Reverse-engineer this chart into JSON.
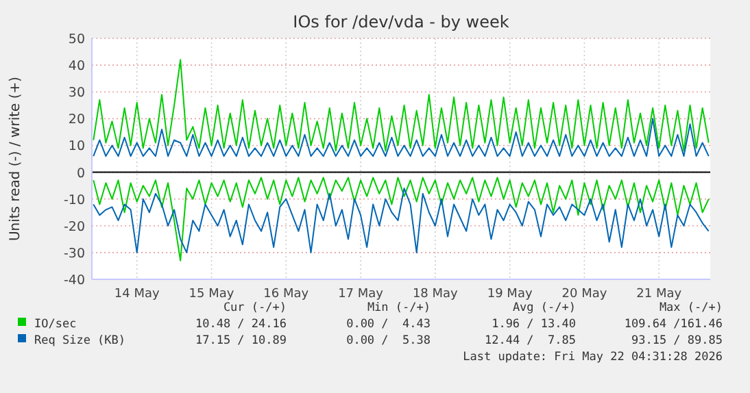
{
  "chart_data": {
    "type": "line",
    "title": "IOs for /dev/vda - by week",
    "ylabel": "Units read (-) / write (+)",
    "x": [
      "2026-05-13T22:00",
      "2026-05-14T00:00",
      "2026-05-14T02:00",
      "2026-05-14T04:00",
      "2026-05-14T06:00",
      "2026-05-14T08:00",
      "2026-05-14T10:00",
      "2026-05-14T12:00",
      "2026-05-14T14:00",
      "2026-05-14T16:00",
      "2026-05-14T18:00",
      "2026-05-14T20:00",
      "2026-05-14T22:00",
      "2026-05-15T00:00",
      "2026-05-15T02:00",
      "2026-05-15T04:00",
      "2026-05-15T06:00",
      "2026-05-15T08:00",
      "2026-05-15T10:00",
      "2026-05-15T12:00",
      "2026-05-15T14:00",
      "2026-05-15T16:00",
      "2026-05-15T18:00",
      "2026-05-15T20:00",
      "2026-05-15T22:00",
      "2026-05-16T00:00",
      "2026-05-16T02:00",
      "2026-05-16T04:00",
      "2026-05-16T06:00",
      "2026-05-16T08:00",
      "2026-05-16T10:00",
      "2026-05-16T12:00",
      "2026-05-16T14:00",
      "2026-05-16T16:00",
      "2026-05-16T18:00",
      "2026-05-16T20:00",
      "2026-05-16T22:00",
      "2026-05-17T00:00",
      "2026-05-17T02:00",
      "2026-05-17T04:00",
      "2026-05-17T06:00",
      "2026-05-17T08:00",
      "2026-05-17T10:00",
      "2026-05-17T12:00",
      "2026-05-17T14:00",
      "2026-05-17T16:00",
      "2026-05-17T18:00",
      "2026-05-17T20:00",
      "2026-05-17T22:00",
      "2026-05-18T00:00",
      "2026-05-18T02:00",
      "2026-05-18T04:00",
      "2026-05-18T06:00",
      "2026-05-18T08:00",
      "2026-05-18T10:00",
      "2026-05-18T12:00",
      "2026-05-18T14:00",
      "2026-05-18T16:00",
      "2026-05-18T18:00",
      "2026-05-18T20:00",
      "2026-05-18T22:00",
      "2026-05-19T00:00",
      "2026-05-19T02:00",
      "2026-05-19T04:00",
      "2026-05-19T06:00",
      "2026-05-19T08:00",
      "2026-05-19T10:00",
      "2026-05-19T12:00",
      "2026-05-19T14:00",
      "2026-05-19T16:00",
      "2026-05-19T18:00",
      "2026-05-19T20:00",
      "2026-05-19T22:00",
      "2026-05-20T00:00",
      "2026-05-20T02:00",
      "2026-05-20T04:00",
      "2026-05-20T06:00",
      "2026-05-20T08:00",
      "2026-05-20T10:00",
      "2026-05-20T12:00",
      "2026-05-20T14:00",
      "2026-05-20T16:00",
      "2026-05-20T18:00",
      "2026-05-20T20:00",
      "2026-05-20T22:00",
      "2026-05-21T00:00",
      "2026-05-21T02:00",
      "2026-05-21T04:00",
      "2026-05-21T06:00",
      "2026-05-21T08:00",
      "2026-05-21T10:00",
      "2026-05-21T12:00",
      "2026-05-21T14:00",
      "2026-05-21T16:00",
      "2026-05-21T18:00",
      "2026-05-21T20:00",
      "2026-05-21T22:00",
      "2026-05-22T00:00",
      "2026-05-22T02:00",
      "2026-05-22T04:00"
    ],
    "series": [
      {
        "name": "IO/sec",
        "color": "#00cc00",
        "values": [
          12,
          27,
          11,
          19,
          9,
          24,
          10,
          26,
          9,
          20,
          11,
          29,
          10,
          25,
          42,
          12,
          17,
          9,
          24,
          10,
          25,
          9,
          22,
          10,
          27,
          9,
          23,
          10,
          20,
          9,
          25,
          10,
          22,
          9,
          26,
          10,
          19,
          9,
          24,
          8,
          22,
          9,
          26,
          10,
          20,
          9,
          24,
          8,
          21,
          10,
          25,
          9,
          23,
          10,
          29,
          9,
          24,
          11,
          28,
          10,
          26,
          9,
          25,
          11,
          27,
          10,
          28,
          11,
          24,
          10,
          27,
          9,
          24,
          11,
          26,
          10,
          25,
          9,
          27,
          10,
          25,
          9,
          26,
          10,
          24,
          9,
          27,
          11,
          22,
          10,
          24,
          9,
          25,
          10,
          23,
          8,
          25,
          9,
          24,
          11
        ]
      },
      {
        "color": "#00cc00",
        "values": [
          -3,
          -12,
          -4,
          -10,
          -3,
          -15,
          -4,
          -11,
          -5,
          -9,
          -3,
          -13,
          -4,
          -18,
          -33,
          -6,
          -10,
          -3,
          -12,
          -4,
          -9,
          -3,
          -11,
          -4,
          -13,
          -3,
          -8,
          -2,
          -10,
          -3,
          -12,
          -3,
          -9,
          -2,
          -11,
          -3,
          -8,
          -2,
          -10,
          -3,
          -7,
          -2,
          -11,
          -3,
          -9,
          -2,
          -8,
          -3,
          -12,
          -2,
          -9,
          -3,
          -11,
          -2,
          -8,
          -3,
          -12,
          -4,
          -10,
          -3,
          -8,
          -2,
          -11,
          -3,
          -9,
          -2,
          -10,
          -3,
          -13,
          -4,
          -9,
          -3,
          -12,
          -4,
          -15,
          -5,
          -10,
          -3,
          -16,
          -4,
          -12,
          -3,
          -14,
          -5,
          -10,
          -3,
          -13,
          -4,
          -15,
          -5,
          -11,
          -3,
          -14,
          -4,
          -16,
          -5,
          -12,
          -4,
          -15,
          -10
        ]
      },
      {
        "name": "Req Size (KB)",
        "color": "#0066b3",
        "values": [
          6,
          12,
          6,
          10,
          6,
          13,
          6,
          11,
          6,
          9,
          6,
          16,
          6,
          12,
          11,
          6,
          14,
          6,
          11,
          6,
          12,
          6,
          10,
          6,
          13,
          6,
          9,
          6,
          11,
          6,
          12,
          6,
          10,
          6,
          14,
          6,
          9,
          6,
          11,
          6,
          10,
          6,
          12,
          6,
          9,
          6,
          11,
          6,
          13,
          6,
          10,
          6,
          12,
          6,
          9,
          6,
          14,
          6,
          11,
          6,
          12,
          6,
          10,
          6,
          13,
          6,
          9,
          6,
          15,
          6,
          11,
          6,
          10,
          6,
          12,
          6,
          14,
          6,
          10,
          6,
          12,
          6,
          11,
          6,
          9,
          6,
          13,
          6,
          12,
          6,
          20,
          6,
          10,
          6,
          14,
          6,
          18,
          6,
          11,
          6
        ]
      },
      {
        "color": "#0066b3",
        "values": [
          -12,
          -16,
          -14,
          -13,
          -18,
          -12,
          -14,
          -30,
          -10,
          -15,
          -8,
          -12,
          -20,
          -14,
          -25,
          -30,
          -18,
          -22,
          -12,
          -16,
          -20,
          -14,
          -24,
          -18,
          -27,
          -12,
          -18,
          -22,
          -15,
          -28,
          -13,
          -10,
          -16,
          -22,
          -14,
          -30,
          -12,
          -18,
          -8,
          -20,
          -14,
          -25,
          -10,
          -16,
          -28,
          -12,
          -20,
          -10,
          -15,
          -18,
          -6,
          -12,
          -30,
          -8,
          -15,
          -20,
          -10,
          -24,
          -12,
          -17,
          -22,
          -10,
          -16,
          -12,
          -25,
          -14,
          -18,
          -12,
          -15,
          -20,
          -11,
          -14,
          -24,
          -12,
          -16,
          -13,
          -18,
          -12,
          -14,
          -16,
          -10,
          -18,
          -12,
          -26,
          -14,
          -28,
          -12,
          -18,
          -10,
          -20,
          -14,
          -24,
          -12,
          -28,
          -16,
          -20,
          -12,
          -15,
          -19,
          -22
        ]
      }
    ],
    "xlim": [
      "2026-05-13T21:30",
      "2026-05-22T04:30"
    ],
    "xticks": [
      {
        "value": "2026-05-14T12:00",
        "label": "14 May"
      },
      {
        "value": "2026-05-15T12:00",
        "label": "15 May"
      },
      {
        "value": "2026-05-16T12:00",
        "label": "16 May"
      },
      {
        "value": "2026-05-17T12:00",
        "label": "17 May"
      },
      {
        "value": "2026-05-18T12:00",
        "label": "18 May"
      },
      {
        "value": "2026-05-19T12:00",
        "label": "19 May"
      },
      {
        "value": "2026-05-20T12:00",
        "label": "20 May"
      },
      {
        "value": "2026-05-21T12:00",
        "label": "21 May"
      }
    ],
    "ylim": [
      -40,
      50
    ],
    "yticks": [
      -40,
      -30,
      -20,
      -10,
      0,
      10,
      20,
      30,
      40,
      50
    ],
    "grid": true,
    "legend": "bottom",
    "annotations": [
      "Cur (-/+)",
      "Min (-/+)",
      "Avg (-/+)",
      "Max (-/+)",
      "10.48 / 24.16",
      "0.00 /  4.43",
      "1.96 / 13.40",
      "109.64 /161.46",
      "17.15 / 10.89",
      "0.00 /  5.38",
      "12.44 /  7.85",
      "93.15 / 89.85",
      "Last update: Fri May 22 04:31:28 2026"
    ]
  }
}
